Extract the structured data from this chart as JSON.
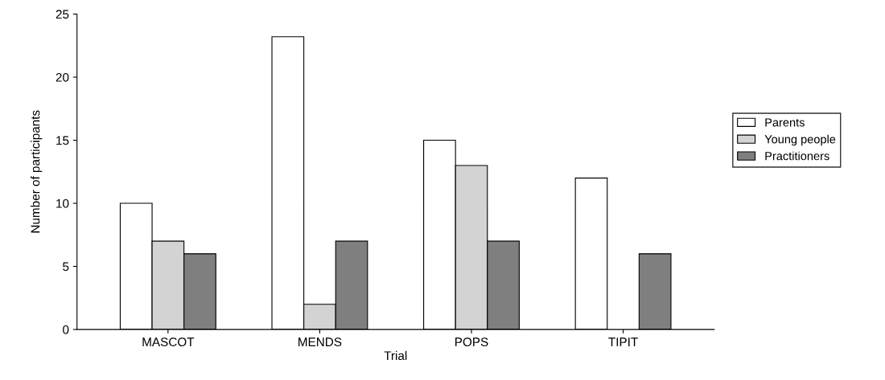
{
  "chart_data": {
    "type": "bar",
    "xlabel": "Trial",
    "ylabel": "Number of participants",
    "categories": [
      "MASCOT",
      "MENDS",
      "POPS",
      "TIPIT"
    ],
    "series": [
      {
        "name": "Parents",
        "color": "#ffffff",
        "values": [
          10,
          23.2,
          15,
          12
        ]
      },
      {
        "name": "Young people",
        "color": "#d3d3d3",
        "values": [
          7,
          2,
          13,
          null
        ]
      },
      {
        "name": "Practitioners",
        "color": "#7f7f7f",
        "values": [
          6,
          7,
          7,
          6
        ]
      }
    ],
    "ylim": [
      0,
      25
    ],
    "yticks": [
      0,
      5,
      10,
      15,
      20,
      25
    ],
    "grid": false,
    "legend": "right"
  }
}
